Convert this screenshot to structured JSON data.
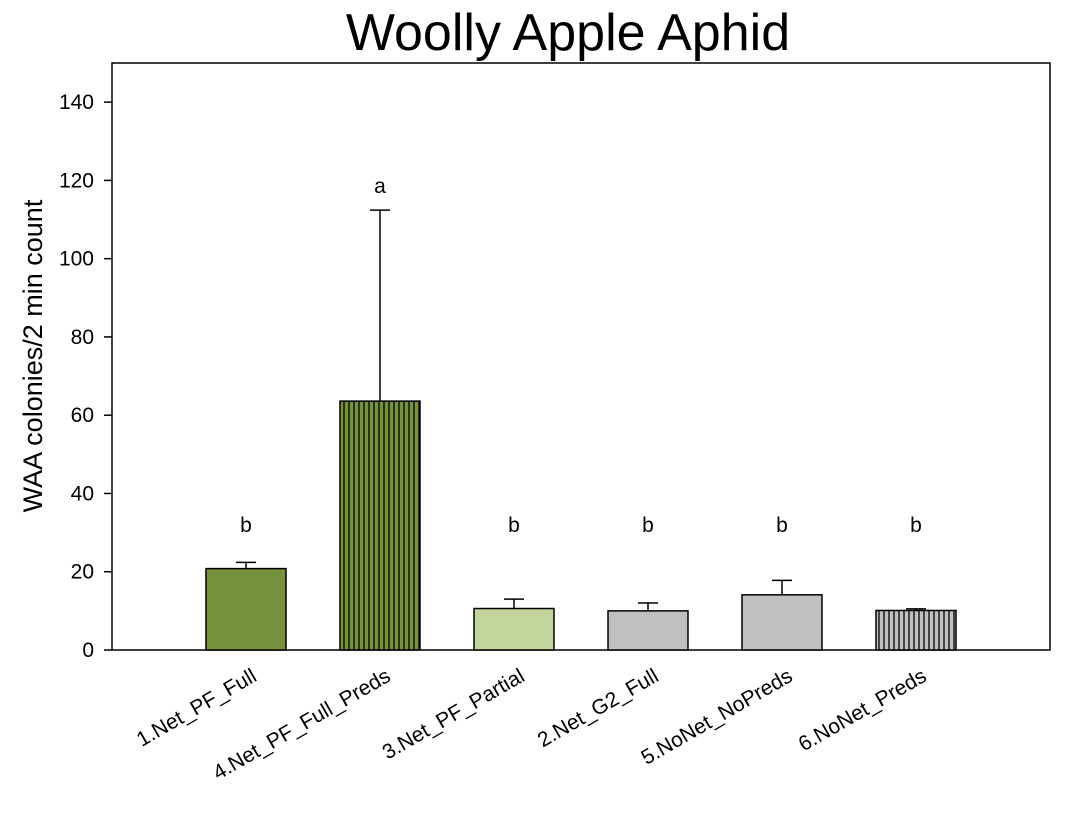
{
  "chart_data": {
    "type": "bar",
    "title": "Woolly Apple Aphid",
    "xlabel": "",
    "ylabel": "WAA colonies/2 min count",
    "ylim": [
      0,
      150
    ],
    "yticks": [
      0,
      20,
      40,
      60,
      80,
      100,
      120,
      140
    ],
    "grid": false,
    "legend": "none",
    "categories": [
      "1.Net_PF_Full",
      "4.Net_PF_Full_Preds",
      "3.Net_PF_Partial",
      "2.Net_G2_Full",
      "5.NoNet_NoPreds",
      "6.NoNet_Preds"
    ],
    "values": [
      20.8,
      63.6,
      10.6,
      10.0,
      14.1,
      10.1
    ],
    "error_upper": [
      22.4,
      112.4,
      13.0,
      12.0,
      17.8,
      10.5
    ],
    "significance_letters": [
      "b",
      "a",
      "b",
      "b",
      "b",
      "b"
    ],
    "bar_colors": [
      "#77923c",
      "#77923c",
      "#c3d59c",
      "#c0c0c0",
      "#c0c0c0",
      "#c0c0c0"
    ],
    "bar_hatched": [
      false,
      true,
      false,
      false,
      false,
      true
    ]
  }
}
